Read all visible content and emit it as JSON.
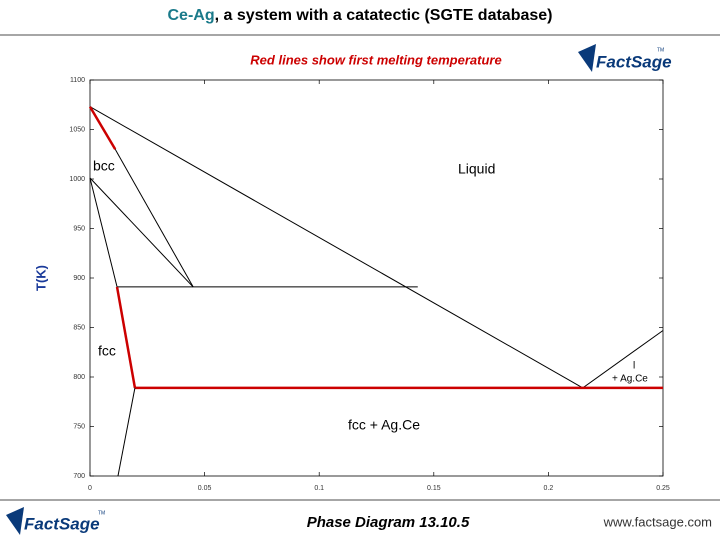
{
  "header": {
    "title_highlight": "Ce-Ag",
    "title_rest": ", a system with a catatectic (SGTE database)"
  },
  "chart_data": {
    "type": "line",
    "subtitle": "Red lines show first melting temperature",
    "y_label": "T(K)",
    "xlim": [
      0,
      0.25
    ],
    "ylim": [
      700,
      1100
    ],
    "xticks": [
      0,
      0.05,
      0.1,
      0.15,
      0.2,
      0.25
    ],
    "yticks": [
      700,
      750,
      800,
      850,
      900,
      950,
      1000,
      1050,
      1100
    ],
    "series": [
      {
        "color": "#000000",
        "x": [
          0,
          0.215
        ],
        "values": [
          1073,
          789
        ]
      },
      {
        "color": "#000000",
        "x": [
          0.215,
          0.25
        ],
        "values": [
          789,
          847
        ]
      },
      {
        "color": "#cc0000",
        "x": [
          0,
          0.011
        ],
        "values": [
          1073,
          1030
        ]
      },
      {
        "color": "#000000",
        "x": [
          0.011,
          0.045
        ],
        "values": [
          1030,
          891
        ]
      },
      {
        "color": "#000000",
        "x": [
          0,
          0.045
        ],
        "values": [
          1001,
          891
        ]
      },
      {
        "color": "#000000",
        "x": [
          0,
          0.0118
        ],
        "values": [
          1001,
          891
        ]
      },
      {
        "color": "#000000",
        "x": [
          0.0118,
          0.143
        ],
        "values": [
          891,
          891
        ]
      },
      {
        "color": "#cc0000",
        "x": [
          0.0118,
          0.0196
        ],
        "values": [
          891,
          789
        ]
      },
      {
        "color": "#cc0000",
        "x": [
          0.0196,
          0.25
        ],
        "values": [
          789,
          789
        ]
      },
      {
        "color": "#000000",
        "x": [
          0.0196,
          0.0122
        ],
        "values": [
          789,
          700
        ]
      }
    ],
    "annotations": [
      "bcc",
      "Liquid",
      "fcc",
      "fcc + Ag.Ce",
      "l",
      "+ Ag.Ce"
    ]
  },
  "logo": {
    "text": "FactSage",
    "tm": "TM"
  },
  "footer": {
    "caption": "Phase Diagram  13.10.5",
    "url": "www.factsage.com"
  }
}
